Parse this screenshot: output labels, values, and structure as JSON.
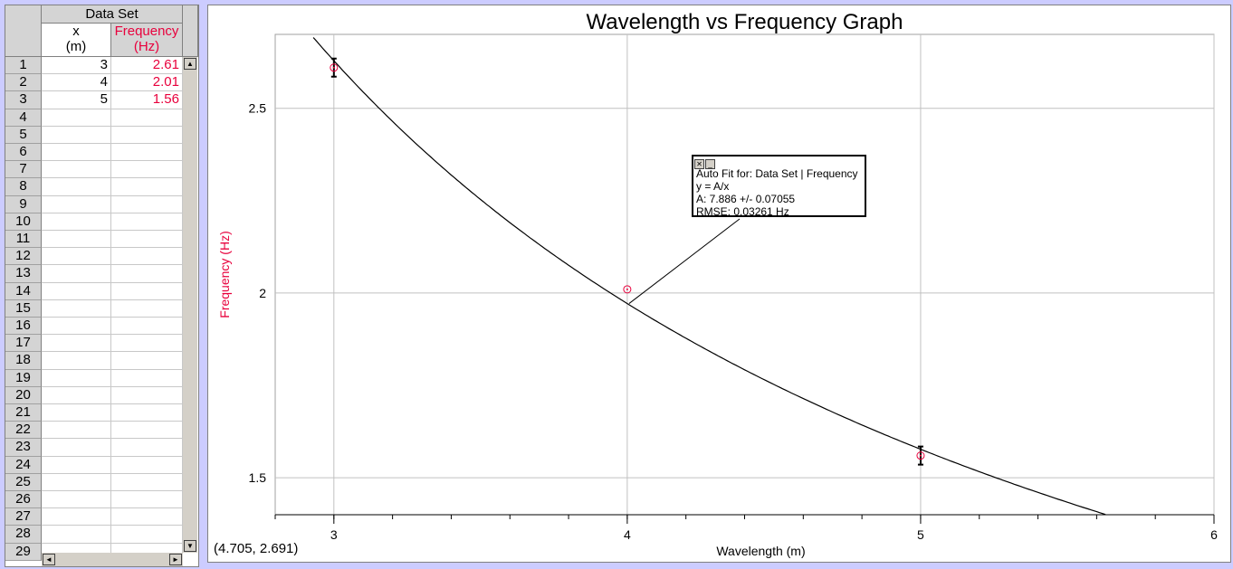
{
  "table": {
    "group_header": "Data Set",
    "columns": [
      {
        "name": "x",
        "unit": "(m)",
        "color": "#000000"
      },
      {
        "name": "Frequency",
        "unit": "(Hz)",
        "color": "#e8003c"
      }
    ],
    "row_numbers": [
      "1",
      "2",
      "3",
      "4",
      "5",
      "6",
      "7",
      "8",
      "9",
      "10",
      "11",
      "12",
      "13",
      "14",
      "15",
      "16",
      "17",
      "18",
      "19",
      "20",
      "21",
      "22",
      "23",
      "24",
      "25",
      "26",
      "27",
      "28",
      "29"
    ],
    "rows": [
      [
        "3",
        "2.61"
      ],
      [
        "4",
        "2.01"
      ],
      [
        "5",
        "1.56"
      ]
    ]
  },
  "graph": {
    "title": "Wavelength vs Frequency Graph",
    "coord_readout": "(4.705, 2.691)",
    "fit": {
      "title": "Auto Fit for: Data Set | Frequency",
      "equation": "y = A/x",
      "param": "A: 7.886 +/- 0.07055",
      "rmse": "RMSE: 0.03261 Hz",
      "A": 7.886
    }
  },
  "chart_data": {
    "type": "scatter",
    "title": "Wavelength vs Frequency Graph",
    "xlabel": "Wavelength (m)",
    "ylabel": "Frequency (Hz)",
    "xlim": [
      2.8,
      6
    ],
    "ylim": [
      1.4,
      2.7
    ],
    "xticks": [
      "3",
      "4",
      "5",
      "6"
    ],
    "yticks": [
      "1.5",
      "2",
      "2.5"
    ],
    "grid": true,
    "point_color": "#e8003c",
    "x": [
      3,
      4,
      5
    ],
    "y": [
      2.61,
      2.01,
      1.56
    ],
    "error_bars": [
      true,
      false,
      true
    ],
    "fit_curve": "y = A/x"
  }
}
